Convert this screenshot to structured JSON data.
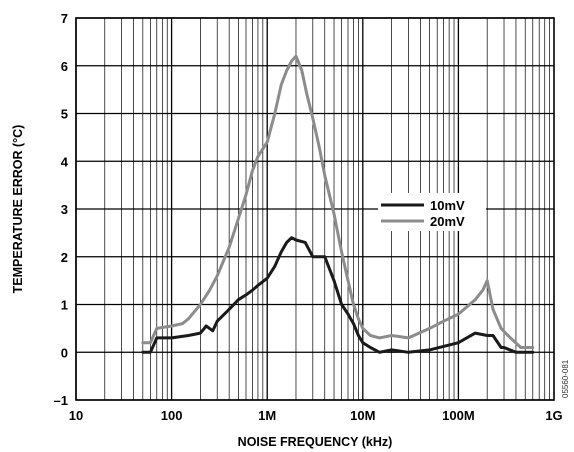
{
  "chart_data": {
    "type": "line",
    "xlabel": "NOISE FREQUENCY (kHz)",
    "ylabel": "TEMPERATURE ERROR (°C)",
    "x_scale": "log",
    "xlim": [
      10,
      1000000
    ],
    "ylim": [
      -1,
      7
    ],
    "x_ticks": [
      {
        "value": 10,
        "label": "10"
      },
      {
        "value": 100,
        "label": "100"
      },
      {
        "value": 1000,
        "label": "1M"
      },
      {
        "value": 10000,
        "label": "10M"
      },
      {
        "value": 100000,
        "label": "100M"
      },
      {
        "value": 1000000,
        "label": "1G"
      }
    ],
    "y_ticks": [
      {
        "value": -1,
        "label": "–1"
      },
      {
        "value": 0,
        "label": "0"
      },
      {
        "value": 1,
        "label": "1"
      },
      {
        "value": 2,
        "label": "2"
      },
      {
        "value": 3,
        "label": "3"
      },
      {
        "value": 4,
        "label": "4"
      },
      {
        "value": 5,
        "label": "5"
      },
      {
        "value": 6,
        "label": "6"
      },
      {
        "value": 7,
        "label": "7"
      }
    ],
    "grid": true,
    "legend_position": "right",
    "figure_code": "05560-081",
    "series": [
      {
        "name": "10mV",
        "color": "#1a1a1a",
        "x": [
          50,
          60,
          70,
          100,
          150,
          200,
          230,
          270,
          300,
          400,
          500,
          600,
          700,
          800,
          1000,
          1200,
          1400,
          1600,
          1800,
          2000,
          2500,
          3000,
          3500,
          4000,
          5000,
          6000,
          7000,
          8000,
          9000,
          10000,
          12000,
          15000,
          20000,
          30000,
          50000,
          100000,
          150000,
          200000,
          230000,
          280000,
          300000,
          400000,
          500000,
          600000
        ],
        "y": [
          0.0,
          0.0,
          0.3,
          0.3,
          0.35,
          0.4,
          0.55,
          0.45,
          0.65,
          0.9,
          1.1,
          1.2,
          1.3,
          1.4,
          1.55,
          1.8,
          2.1,
          2.3,
          2.4,
          2.35,
          2.3,
          2.0,
          2.0,
          2.0,
          1.5,
          1.0,
          0.8,
          0.6,
          0.35,
          0.2,
          0.1,
          0.0,
          0.05,
          0.0,
          0.05,
          0.2,
          0.4,
          0.35,
          0.35,
          0.1,
          0.1,
          0.0,
          0.0,
          0.0
        ]
      },
      {
        "name": "20mV",
        "color": "#8c8c8c",
        "x": [
          50,
          60,
          70,
          100,
          130,
          150,
          200,
          250,
          300,
          400,
          500,
          600,
          700,
          800,
          1000,
          1200,
          1400,
          1600,
          1800,
          2000,
          2300,
          2600,
          3000,
          3500,
          4000,
          5000,
          6000,
          7000,
          8000,
          9000,
          10000,
          12000,
          15000,
          20000,
          30000,
          50000,
          70000,
          100000,
          150000,
          180000,
          200000,
          230000,
          280000,
          350000,
          450000,
          600000
        ],
        "y": [
          0.2,
          0.2,
          0.5,
          0.55,
          0.6,
          0.7,
          1.0,
          1.3,
          1.6,
          2.2,
          2.8,
          3.3,
          3.8,
          4.1,
          4.4,
          5.0,
          5.6,
          5.9,
          6.1,
          6.2,
          5.9,
          5.4,
          4.9,
          4.3,
          3.7,
          2.9,
          2.1,
          1.5,
          1.0,
          0.7,
          0.5,
          0.35,
          0.3,
          0.35,
          0.3,
          0.5,
          0.65,
          0.8,
          1.1,
          1.3,
          1.5,
          0.9,
          0.5,
          0.3,
          0.1,
          0.1
        ]
      }
    ]
  }
}
